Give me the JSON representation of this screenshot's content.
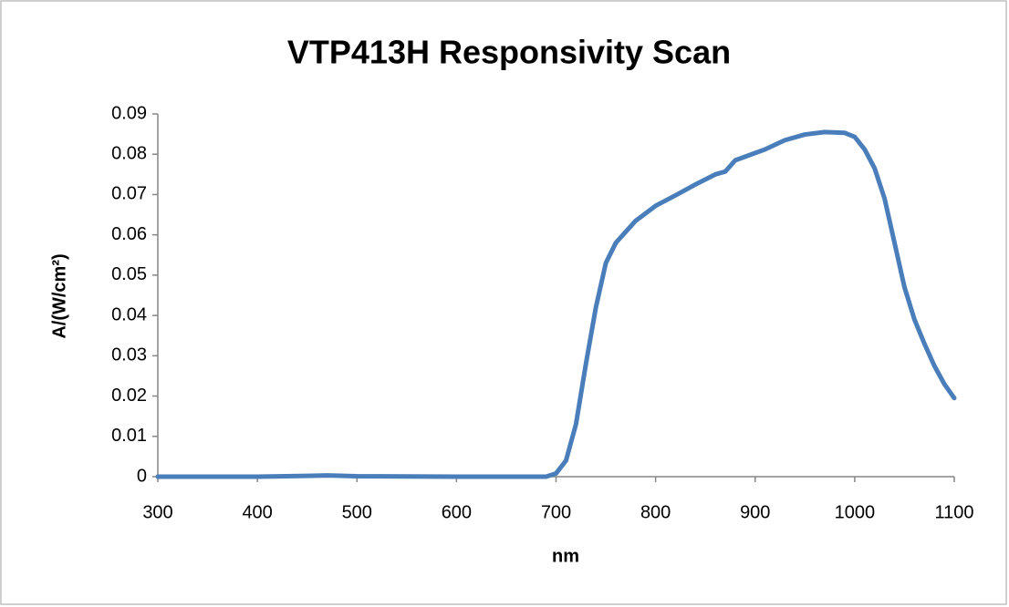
{
  "chart_data": {
    "type": "line",
    "title": "VTP413H Responsivity Scan",
    "x_label": "nm",
    "y_label": "A/(W/cm²)",
    "x": [
      300,
      400,
      450,
      470,
      500,
      600,
      690,
      700,
      710,
      720,
      730,
      740,
      750,
      760,
      780,
      800,
      820,
      840,
      860,
      870,
      880,
      900,
      910,
      930,
      950,
      970,
      990,
      1000,
      1010,
      1020,
      1030,
      1040,
      1050,
      1060,
      1070,
      1080,
      1090,
      1100
    ],
    "series": [
      {
        "name": "Responsivity",
        "color": "#4a7ebb",
        "values": [
          0,
          0,
          0.0002,
          0.0003,
          0.0001,
          0,
          0,
          0.0008,
          0.004,
          0.013,
          0.028,
          0.042,
          0.053,
          0.058,
          0.0635,
          0.0672,
          0.0698,
          0.0725,
          0.075,
          0.0757,
          0.0785,
          0.0803,
          0.0812,
          0.0835,
          0.0849,
          0.0855,
          0.0853,
          0.0843,
          0.0812,
          0.0765,
          0.069,
          0.058,
          0.047,
          0.039,
          0.033,
          0.0275,
          0.023,
          0.0195
        ]
      }
    ],
    "xlim": [
      300,
      1100
    ],
    "xticks": [
      300,
      400,
      500,
      600,
      700,
      800,
      900,
      1000,
      1100
    ],
    "ylim": [
      0,
      0.09
    ],
    "yticks": [
      0,
      0.01,
      0.02,
      0.03,
      0.04,
      0.05,
      0.06,
      0.07,
      0.08,
      0.09
    ],
    "grid": false
  }
}
